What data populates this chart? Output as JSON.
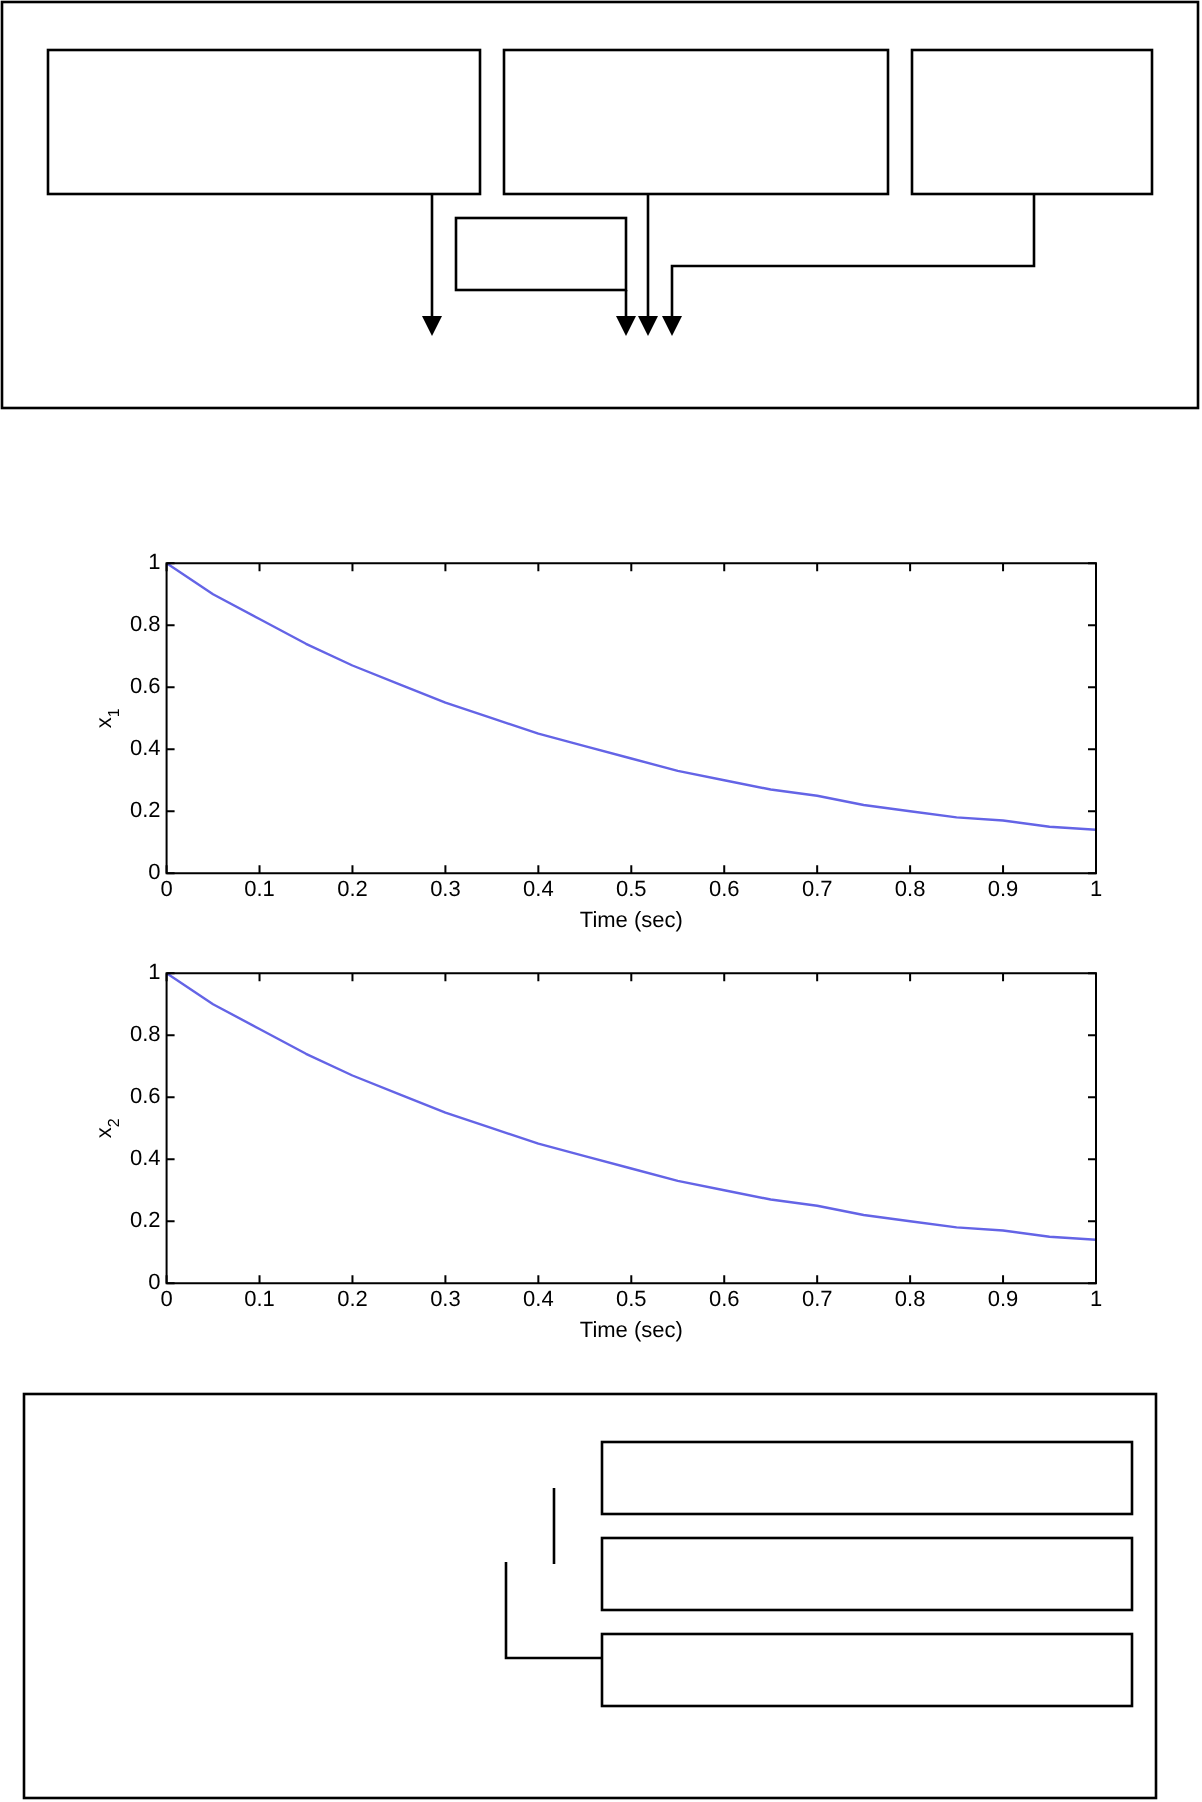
{
  "chart_data": [
    {
      "type": "line",
      "ylabel": "x$_{1}$",
      "xlabel": "Time (sec)",
      "x": [
        0,
        0.05,
        0.1,
        0.15,
        0.2,
        0.25,
        0.3,
        0.35,
        0.4,
        0.45,
        0.5,
        0.55,
        0.6,
        0.65,
        0.7,
        0.75,
        0.8,
        0.85,
        0.9,
        0.95,
        1
      ],
      "series": [
        {
          "color": "#6464e6",
          "values": [
            1,
            0.9,
            0.82,
            0.74,
            0.67,
            0.61,
            0.55,
            0.5,
            0.45,
            0.41,
            0.37,
            0.33,
            0.3,
            0.27,
            0.25,
            0.22,
            0.2,
            0.18,
            0.17,
            0.15,
            0.14
          ]
        }
      ],
      "xlim": [
        0,
        1
      ],
      "xticks": [
        0,
        0.1,
        0.2,
        0.3,
        0.4,
        0.5,
        0.6,
        0.7,
        0.8,
        0.9,
        1
      ],
      "ylim": [
        0,
        1
      ],
      "yticks": [
        0,
        0.2,
        0.4,
        0.6,
        0.8,
        1
      ],
      "marker": "none",
      "line_style": "solid"
    },
    {
      "type": "line",
      "ylabel": "x$_{2}$",
      "xlabel": "Time (sec)",
      "x": [
        0,
        0.05,
        0.1,
        0.15,
        0.2,
        0.25,
        0.3,
        0.35,
        0.4,
        0.45,
        0.5,
        0.55,
        0.6,
        0.65,
        0.7,
        0.75,
        0.8,
        0.85,
        0.9,
        0.95,
        1
      ],
      "series": [
        {
          "color": "#6464e6",
          "values": [
            1,
            0.9,
            0.82,
            0.74,
            0.67,
            0.61,
            0.55,
            0.5,
            0.45,
            0.41,
            0.37,
            0.33,
            0.3,
            0.27,
            0.25,
            0.22,
            0.2,
            0.18,
            0.17,
            0.15,
            0.14
          ]
        }
      ],
      "xlim": [
        0,
        1
      ],
      "xticks": [
        0,
        0.1,
        0.2,
        0.3,
        0.4,
        0.5,
        0.6,
        0.7,
        0.8,
        0.9,
        1
      ],
      "ylim": [
        0,
        1
      ],
      "yticks": [
        0,
        0.2,
        0.4,
        0.6,
        0.8,
        1
      ],
      "marker": "none",
      "line_style": "solid"
    }
  ]
}
